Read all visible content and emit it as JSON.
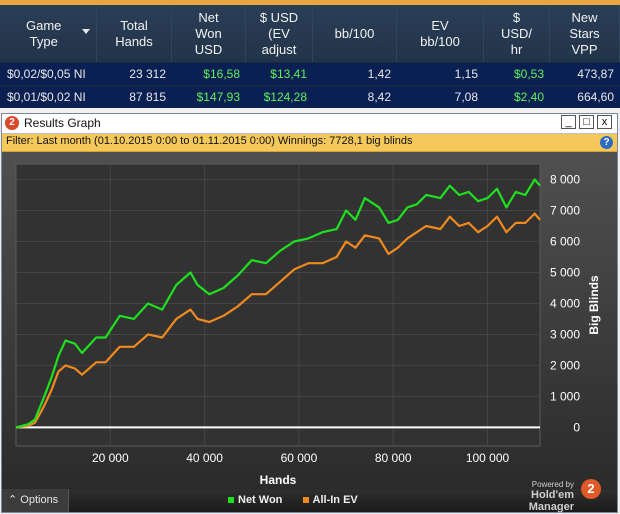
{
  "stats_table": {
    "headers": [
      [
        "Game",
        "Type"
      ],
      [
        "Total",
        "Hands"
      ],
      [
        "Net",
        "Won",
        "USD"
      ],
      [
        "$ USD",
        "(EV",
        "adjust"
      ],
      [
        "bb/100"
      ],
      [
        "EV",
        "bb/100"
      ],
      [
        "$",
        "USD/",
        "hr"
      ],
      [
        "New",
        "Stars",
        "VPP"
      ]
    ],
    "rows": [
      [
        "$0,02/$0,05 NI",
        "23 312",
        "$16,58",
        "$13,41",
        "1,42",
        "1,15",
        "$0,53",
        "473,87"
      ],
      [
        "$0,01/$0,02 NI",
        "87 815",
        "$147,93",
        "$124,28",
        "8,42",
        "7,08",
        "$2,40",
        "664,60"
      ]
    ]
  },
  "window": {
    "title": "Results Graph",
    "logo_text": "2",
    "minimize": "_",
    "restore": "□",
    "close": "x",
    "filter_text": "Filter: Last month (01.10.2015 0:00 to 01.11.2015 0:00) Winnings: 7728,1 big blinds",
    "help_icon": "?"
  },
  "chart_data": {
    "type": "line",
    "xlabel": "Hands",
    "ylabel": "Big Blinds",
    "xlim": [
      0,
      111127
    ],
    "ylim": [
      -600,
      8500
    ],
    "x_ticks": [
      20000,
      40000,
      60000,
      80000,
      100000
    ],
    "x_tick_labels": [
      "20 000",
      "40 000",
      "60 000",
      "80 000",
      "100 000"
    ],
    "y_ticks": [
      0,
      1000,
      2000,
      3000,
      4000,
      5000,
      6000,
      7000,
      8000
    ],
    "y_tick_labels": [
      "0",
      "1 000",
      "2 000",
      "3 000",
      "4 000",
      "5 000",
      "6 000",
      "7 000",
      "8 000"
    ],
    "zero_line": true,
    "series": [
      {
        "name": "Net Won",
        "color": "#1fe01f",
        "x": [
          0,
          2500,
          4000,
          6000,
          7500,
          9000,
          10500,
          12500,
          14000,
          17000,
          19000,
          22000,
          25000,
          28000,
          31000,
          34000,
          37000,
          38500,
          41000,
          44000,
          47000,
          50000,
          53000,
          56000,
          59000,
          62000,
          65000,
          68000,
          70000,
          72000,
          74000,
          77000,
          79000,
          81000,
          83000,
          85000,
          87000,
          90000,
          92000,
          94000,
          96000,
          98000,
          100000,
          102000,
          104000,
          106000,
          108000,
          110000,
          111127
        ],
        "y": [
          0,
          100,
          250,
          1000,
          1600,
          2300,
          2800,
          2700,
          2400,
          2900,
          2900,
          3600,
          3500,
          4000,
          3800,
          4600,
          5000,
          4600,
          4300,
          4500,
          4900,
          5400,
          5300,
          5700,
          6000,
          6100,
          6300,
          6400,
          7000,
          6700,
          7400,
          7100,
          6600,
          6700,
          7100,
          7200,
          7500,
          7400,
          7800,
          7500,
          7600,
          7300,
          7400,
          7700,
          7100,
          7600,
          7500,
          8000,
          7800
        ]
      },
      {
        "name": "All-In EV",
        "color": "#f08a1f",
        "x": [
          0,
          2500,
          4000,
          6000,
          7500,
          9000,
          10500,
          12500,
          14000,
          17000,
          19000,
          22000,
          25000,
          28000,
          31000,
          34000,
          37000,
          38500,
          41000,
          44000,
          47000,
          50000,
          53000,
          56000,
          59000,
          62000,
          65000,
          68000,
          70000,
          72000,
          74000,
          77000,
          79000,
          81000,
          83000,
          85000,
          87000,
          90000,
          92000,
          94000,
          96000,
          98000,
          100000,
          102000,
          104000,
          106000,
          108000,
          110000,
          111127
        ],
        "y": [
          0,
          50,
          150,
          700,
          1200,
          1800,
          2000,
          1900,
          1700,
          2100,
          2100,
          2600,
          2600,
          3000,
          2900,
          3500,
          3800,
          3500,
          3400,
          3600,
          3900,
          4300,
          4300,
          4700,
          5100,
          5300,
          5300,
          5500,
          6000,
          5800,
          6200,
          6100,
          5600,
          5800,
          6100,
          6300,
          6500,
          6400,
          6800,
          6500,
          6600,
          6300,
          6500,
          6800,
          6300,
          6600,
          6600,
          6900,
          6700
        ]
      }
    ]
  },
  "bottombar": {
    "options_label": "⌃ Options",
    "legend_net_won": "Net Won",
    "legend_allin_ev": "All-In EV",
    "powered_by": "Powered by",
    "brand": "Hold'em Manager",
    "brand_logo_text": "2"
  }
}
